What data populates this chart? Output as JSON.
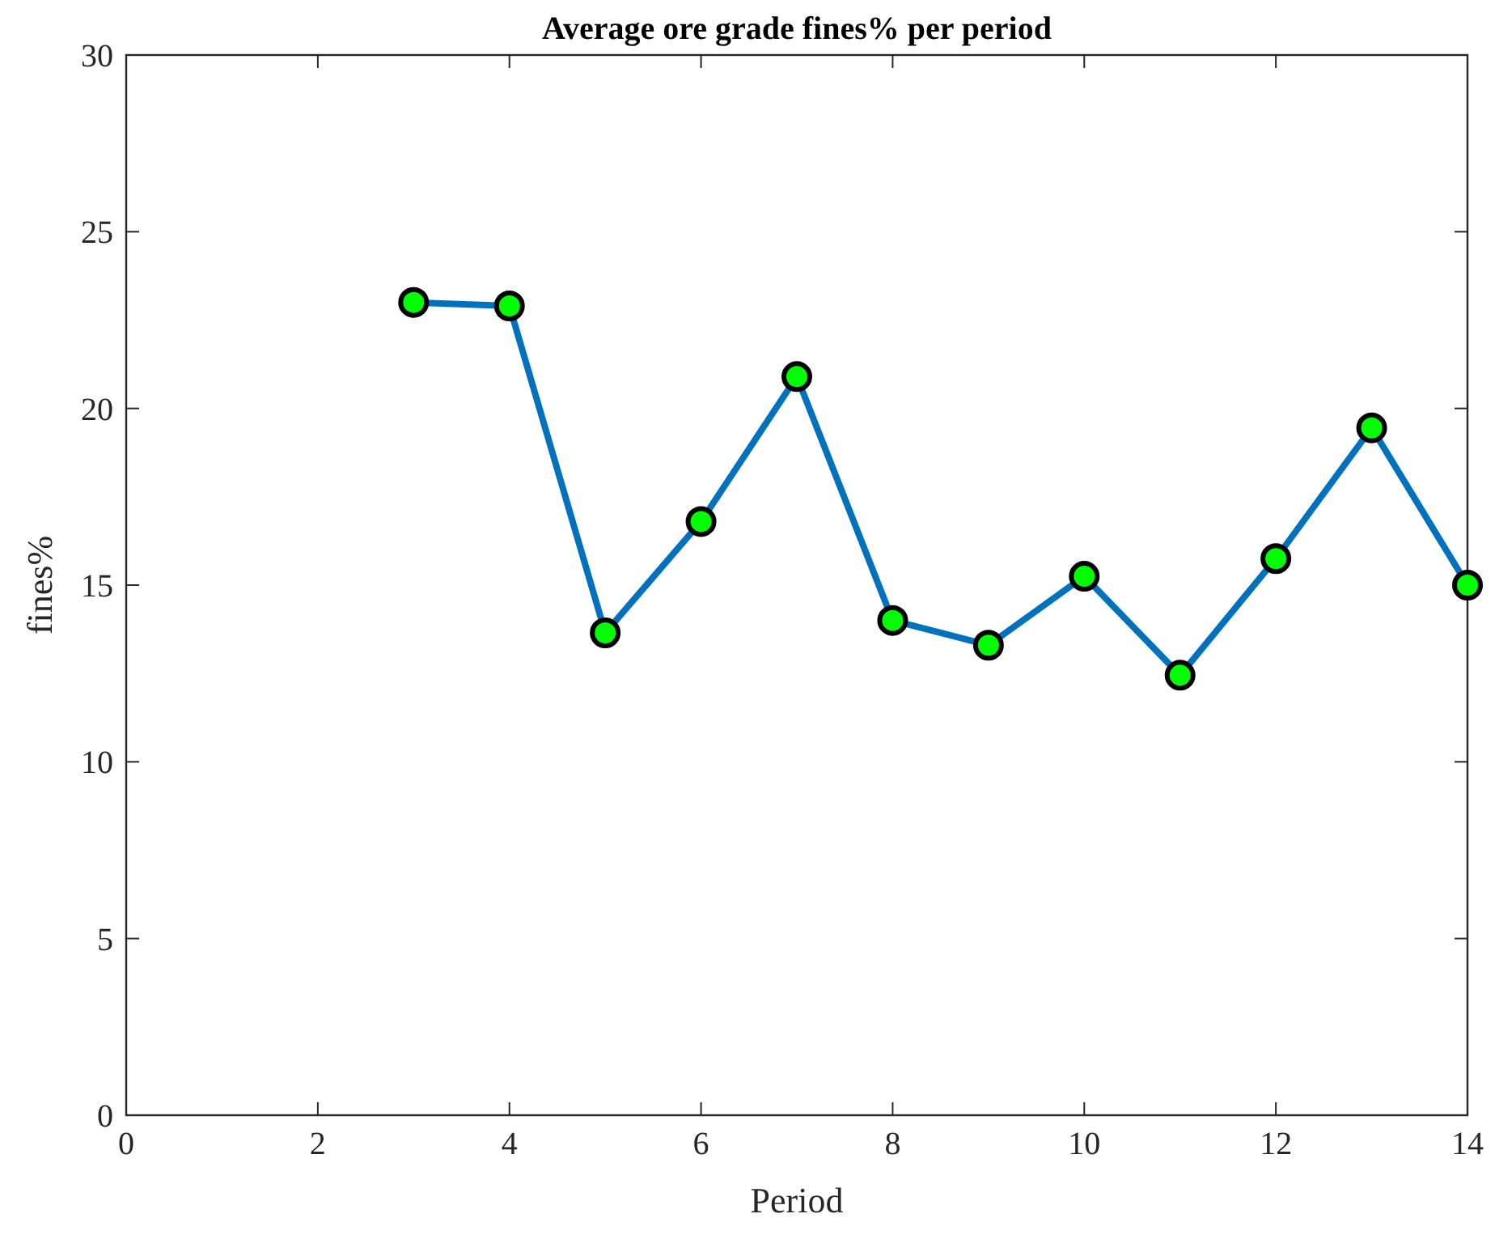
{
  "chart_data": {
    "type": "line",
    "title": "Average ore grade fines% per period",
    "xlabel": "Period",
    "ylabel": "fines%",
    "x": [
      3,
      4,
      5,
      6,
      7,
      8,
      9,
      10,
      11,
      12,
      13,
      14
    ],
    "series": [
      {
        "color": "#0072bd",
        "values": [
          23.0,
          22.9,
          13.65,
          16.8,
          20.9,
          14.0,
          13.3,
          15.25,
          12.45,
          15.75,
          19.45,
          15.0
        ]
      }
    ],
    "xlim": [
      0,
      14
    ],
    "xticks": [
      0,
      2,
      4,
      6,
      8,
      10,
      12,
      14
    ],
    "ylim": [
      0,
      30
    ],
    "yticks": [
      0,
      5,
      10,
      15,
      20,
      25,
      30
    ],
    "marker": "circle",
    "line_style": "solid",
    "grid": false
  }
}
